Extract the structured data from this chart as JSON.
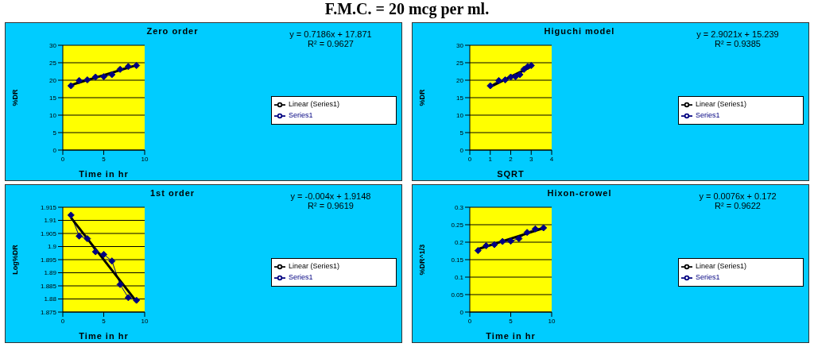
{
  "chart_data": [
    {
      "type": "other",
      "title": "F.M.C. = 20 mcg per ml."
    },
    {
      "type": "line",
      "title": "Zero order",
      "xlabel": "Time in hr",
      "ylabel": "%DR",
      "annotations": [
        "y = 0.7186x + 17.871",
        "R² = 0.9627"
      ],
      "x": [
        1,
        2,
        3,
        4,
        5,
        6,
        7,
        8,
        9
      ],
      "series": [
        {
          "name": "Series1",
          "color": "#000080",
          "values": [
            18.4,
            19.9,
            20.1,
            20.9,
            21.0,
            21.6,
            23.1,
            23.9,
            24.2
          ]
        },
        {
          "name": "Linear (Series1)",
          "color": "#000000",
          "marker": "none",
          "x": [
            1,
            9
          ],
          "values": [
            18.6,
            24.3
          ]
        }
      ],
      "xlim": [
        0,
        10
      ],
      "xticks": [
        0,
        5,
        10
      ],
      "ylim": [
        0,
        30
      ],
      "yticks": [
        0,
        5,
        10,
        15,
        20,
        25,
        30
      ],
      "grid": "y",
      "legend": "right",
      "marker": "diamond"
    },
    {
      "type": "line",
      "title": "Higuchi model",
      "xlabel": "SQRT",
      "ylabel": "%DR",
      "annotations": [
        "y = 2.9021x + 15.239",
        "R² = 0.9385"
      ],
      "x": [
        1,
        1.414,
        1.732,
        2,
        2.236,
        2.449,
        2.646,
        2.828,
        3
      ],
      "series": [
        {
          "name": "Series1",
          "color": "#000080",
          "values": [
            18.4,
            19.9,
            20.1,
            20.9,
            21.0,
            21.6,
            23.1,
            23.9,
            24.2
          ]
        },
        {
          "name": "Linear (Series1)",
          "color": "#000000",
          "marker": "none",
          "x": [
            1,
            3
          ],
          "values": [
            18.1,
            23.9
          ]
        }
      ],
      "xlim": [
        0,
        4
      ],
      "xticks": [
        0,
        1,
        2,
        3,
        4
      ],
      "ylim": [
        0,
        30
      ],
      "yticks": [
        0,
        5,
        10,
        15,
        20,
        25,
        30
      ],
      "grid": "y",
      "legend": "right",
      "marker": "diamond"
    },
    {
      "type": "line",
      "title": "1st order",
      "xlabel": "Time in hr",
      "ylabel": "Log%DR",
      "annotations": [
        "y = -0.004x + 1.9148",
        "R² = 0.9619"
      ],
      "x": [
        1,
        2,
        3,
        4,
        5,
        6,
        7,
        8,
        9
      ],
      "series": [
        {
          "name": "Series1",
          "color": "#000080",
          "values": [
            1.912,
            1.904,
            1.903,
            1.898,
            1.897,
            1.8945,
            1.8855,
            1.8805,
            1.8795
          ]
        },
        {
          "name": "Linear (Series1)",
          "color": "#000000",
          "marker": "none",
          "x": [
            1,
            9
          ],
          "values": [
            1.911,
            1.879
          ]
        }
      ],
      "xlim": [
        0,
        10
      ],
      "xticks": [
        0,
        5,
        10
      ],
      "ylim": [
        1.875,
        1.915
      ],
      "yticks": [
        1.875,
        1.88,
        1.885,
        1.89,
        1.895,
        1.9,
        1.905,
        1.91,
        1.915
      ],
      "grid": "y",
      "legend": "right",
      "marker": "diamond"
    },
    {
      "type": "line",
      "title": "Hixon-crowel",
      "xlabel": "Time in hr",
      "ylabel": "%DR^1/3",
      "annotations": [
        "y = 0.0076x + 0.172",
        "R² = 0.9622"
      ],
      "x": [
        1,
        2,
        3,
        4,
        5,
        6,
        7,
        8,
        9
      ],
      "series": [
        {
          "name": "Series1",
          "color": "#000080",
          "values": [
            0.176,
            0.19,
            0.193,
            0.202,
            0.203,
            0.21,
            0.228,
            0.238,
            0.241
          ]
        },
        {
          "name": "Linear (Series1)",
          "color": "#000000",
          "marker": "none",
          "x": [
            1,
            9
          ],
          "values": [
            0.18,
            0.24
          ]
        }
      ],
      "xlim": [
        0,
        10
      ],
      "xticks": [
        0,
        5,
        10
      ],
      "ylim": [
        0,
        0.3
      ],
      "yticks": [
        0,
        0.05,
        0.1,
        0.15,
        0.2,
        0.25,
        0.3
      ],
      "grid": "y",
      "legend": "right",
      "marker": "diamond"
    }
  ]
}
